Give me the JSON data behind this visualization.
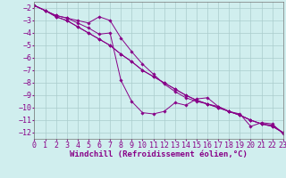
{
  "background_color": "#d0eeee",
  "grid_color": "#aacccc",
  "line_color": "#880088",
  "xlabel": "Windchill (Refroidissement éolien,°C)",
  "xlabel_fontsize": 6.5,
  "tick_fontsize": 6.0,
  "xlim": [
    0,
    23
  ],
  "ylim": [
    -12.5,
    -1.5
  ],
  "yticks": [
    -2,
    -3,
    -4,
    -5,
    -6,
    -7,
    -8,
    -9,
    -10,
    -11,
    -12
  ],
  "xticks": [
    0,
    1,
    2,
    3,
    4,
    5,
    6,
    7,
    8,
    9,
    10,
    11,
    12,
    13,
    14,
    15,
    16,
    17,
    18,
    19,
    20,
    21,
    22,
    23
  ],
  "series": [
    {
      "x": [
        0,
        1,
        2,
        3,
        4,
        5,
        6,
        7,
        8,
        9,
        10,
        11,
        12,
        13,
        14,
        15,
        16,
        17,
        18,
        19,
        20,
        21,
        22,
        23
      ],
      "y": [
        -1.8,
        -2.2,
        -2.7,
        -3.0,
        -3.5,
        -4.0,
        -4.5,
        -5.0,
        -5.7,
        -6.3,
        -7.0,
        -7.5,
        -8.0,
        -8.5,
        -9.0,
        -9.4,
        -9.7,
        -10.0,
        -10.3,
        -10.6,
        -11.0,
        -11.3,
        -11.5,
        -12.0
      ]
    },
    {
      "x": [
        0,
        1,
        2,
        3,
        4,
        5,
        6,
        7,
        8,
        9,
        10,
        11,
        12,
        13,
        14,
        15,
        16,
        17,
        18,
        19,
        20,
        21,
        22,
        23
      ],
      "y": [
        -1.8,
        -2.2,
        -2.7,
        -3.0,
        -3.5,
        -4.0,
        -4.5,
        -5.0,
        -5.7,
        -6.3,
        -7.0,
        -7.5,
        -8.0,
        -8.5,
        -9.0,
        -9.4,
        -9.7,
        -10.0,
        -10.3,
        -10.6,
        -11.0,
        -11.3,
        -11.5,
        -12.0
      ]
    },
    {
      "x": [
        0,
        1,
        2,
        3,
        4,
        5,
        6,
        7,
        8,
        9,
        10,
        11,
        12,
        13,
        14,
        15,
        16,
        17,
        18,
        19,
        20,
        21,
        22,
        23
      ],
      "y": [
        -1.8,
        -2.2,
        -2.6,
        -2.8,
        -3.0,
        -3.2,
        -2.7,
        -3.0,
        -4.4,
        -5.5,
        -6.5,
        -7.3,
        -8.1,
        -8.7,
        -9.2,
        -9.5,
        -9.7,
        -9.9,
        -10.3,
        -10.6,
        -11.0,
        -11.3,
        -11.4,
        -12.0
      ]
    },
    {
      "x": [
        0,
        1,
        2,
        3,
        4,
        5,
        6,
        7,
        8,
        9,
        10,
        11,
        12,
        13,
        14,
        15,
        16,
        17,
        18,
        19,
        20,
        21,
        22,
        23
      ],
      "y": [
        -1.8,
        -2.2,
        -2.6,
        -2.8,
        -3.2,
        -3.6,
        -4.1,
        -4.0,
        -7.8,
        -9.5,
        -10.4,
        -10.5,
        -10.3,
        -9.6,
        -9.8,
        -9.3,
        -9.2,
        -9.9,
        -10.3,
        -10.5,
        -11.5,
        -11.2,
        -11.3,
        -12.1
      ]
    }
  ]
}
